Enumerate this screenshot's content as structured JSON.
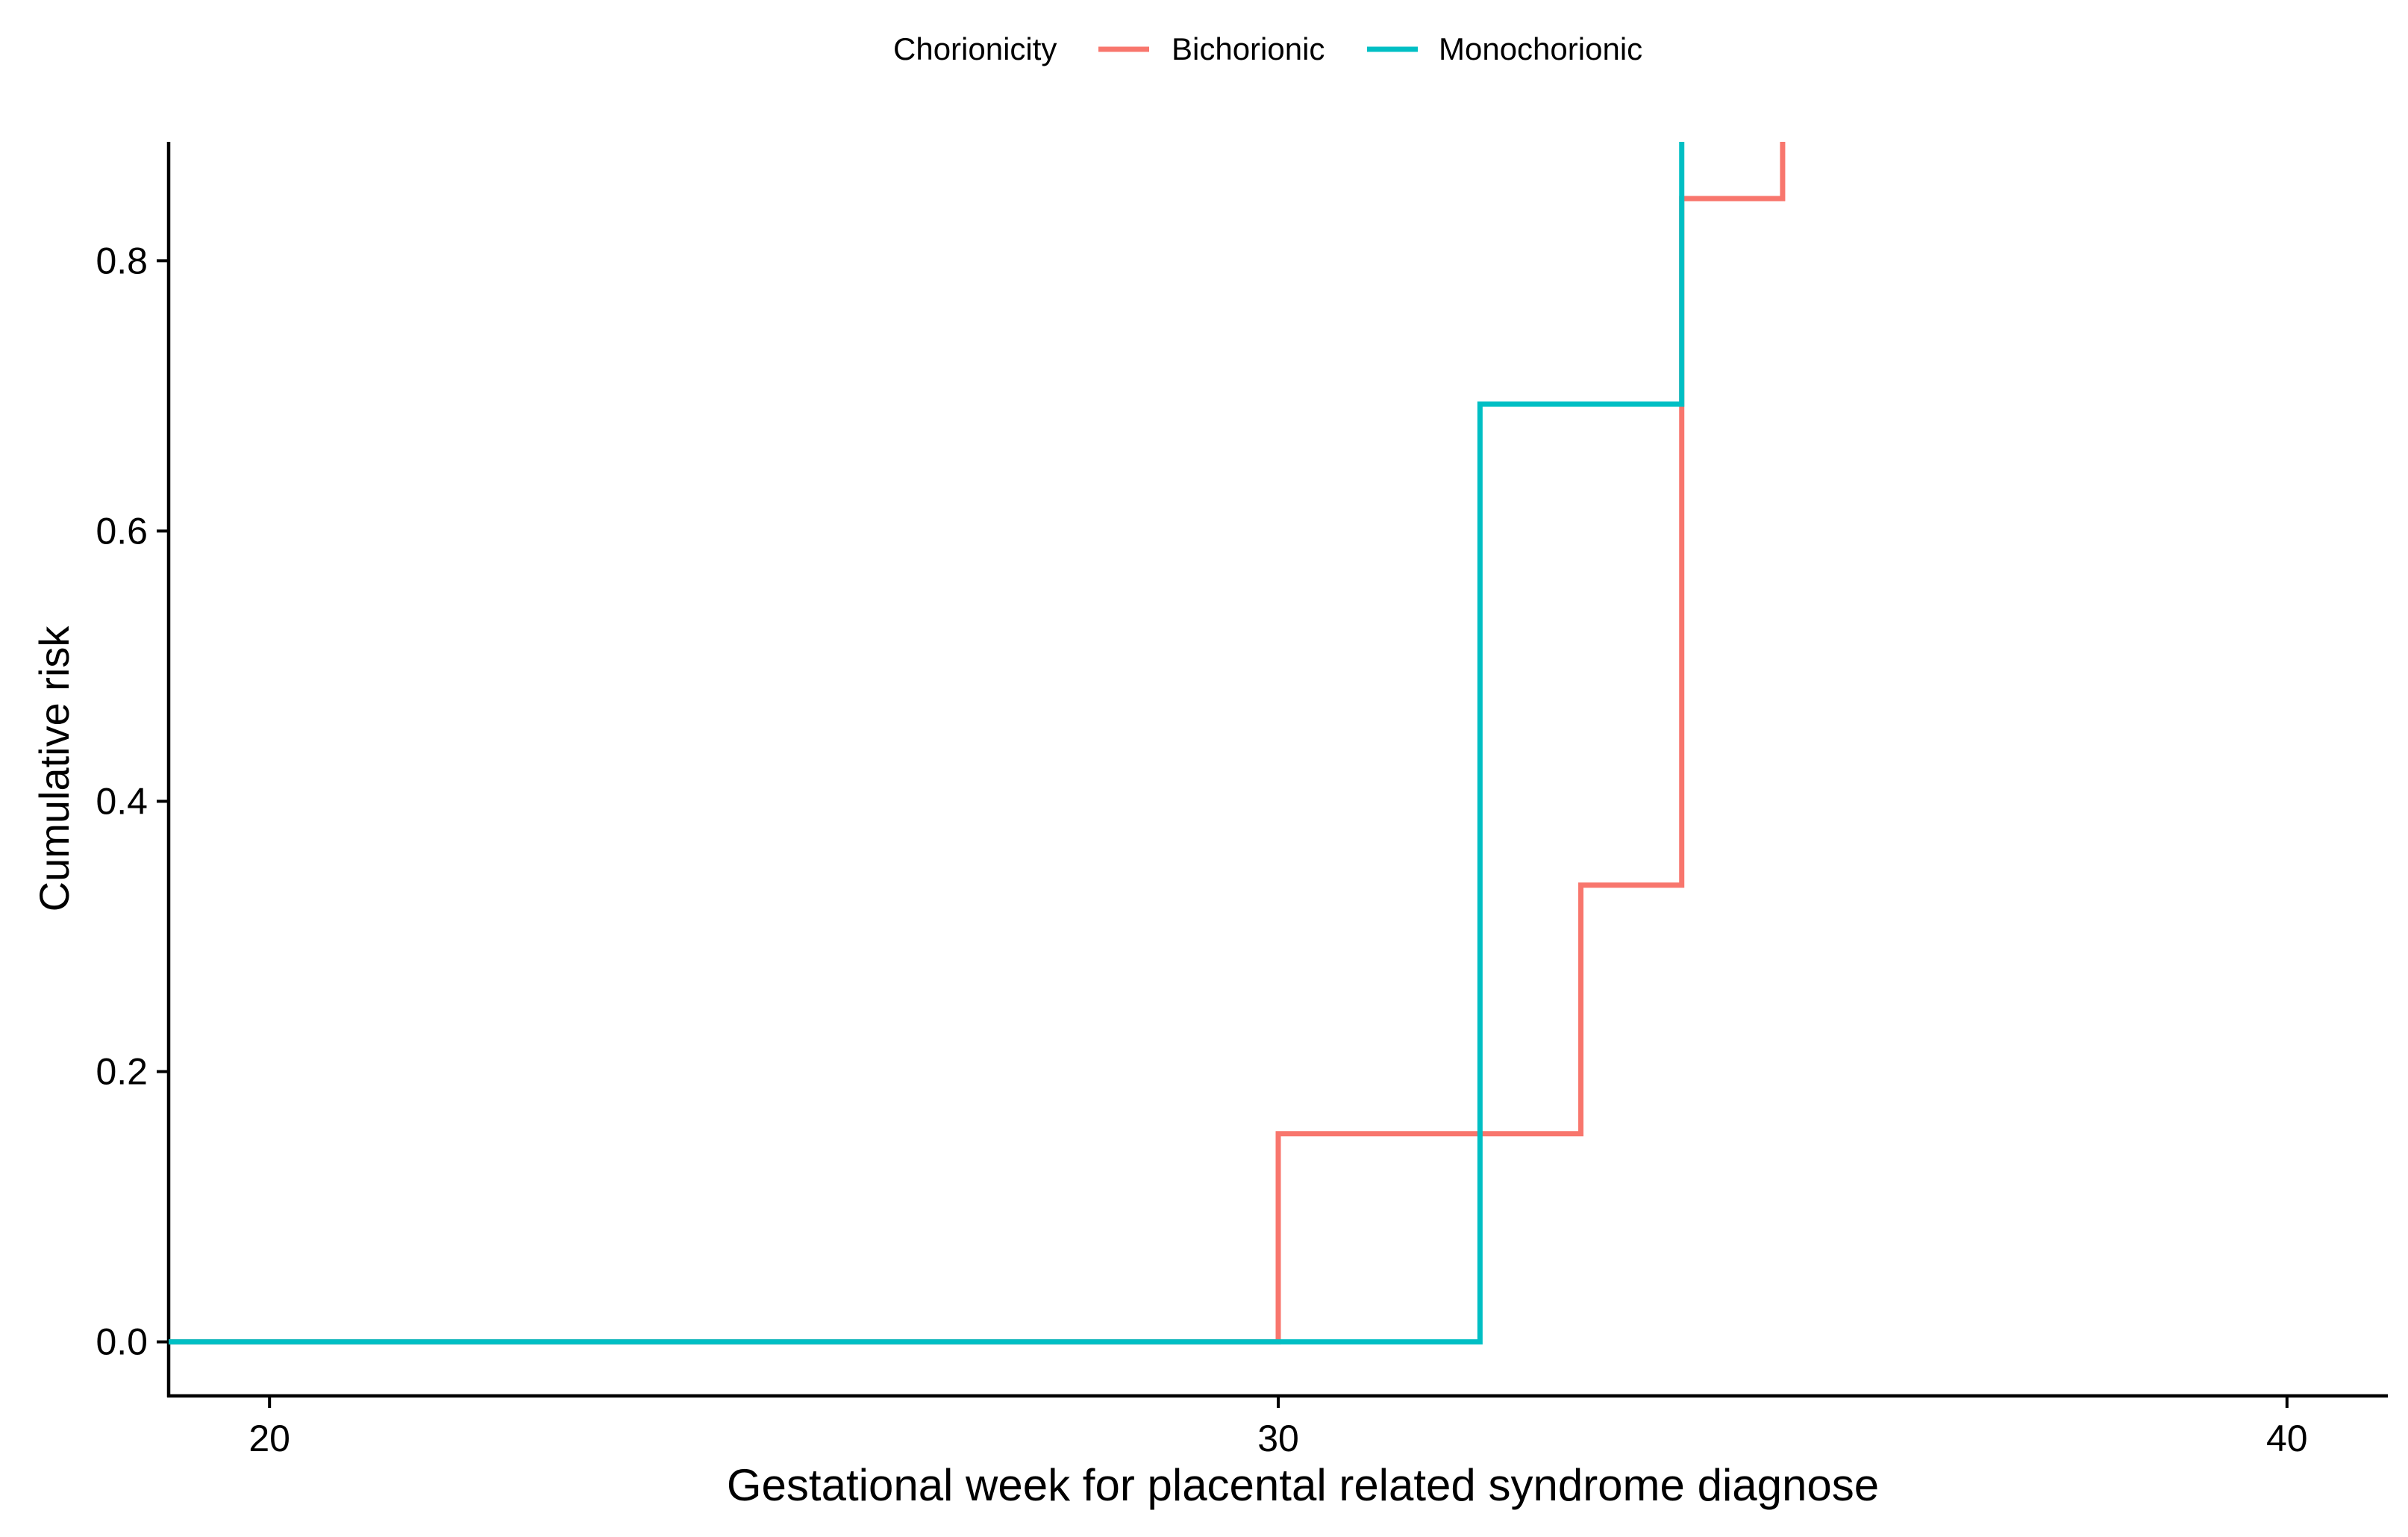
{
  "chart_data": {
    "type": "line",
    "title": "",
    "xlabel": "Gestational week for placental related syndrome diagnose",
    "ylabel": "Cumulative risk",
    "xlim": [
      19,
      41
    ],
    "ylim": [
      -0.04,
      0.888
    ],
    "x_ticks": [
      20,
      30,
      40
    ],
    "x_tick_labels": [
      "20",
      "30",
      "40"
    ],
    "y_ticks": [
      0.0,
      0.2,
      0.4,
      0.6,
      0.8
    ],
    "y_tick_labels": [
      "0.0",
      "0.2",
      "0.4",
      "0.6",
      "0.8"
    ],
    "grid": false,
    "step": true,
    "legend": {
      "title": "Chorionicity",
      "position": "top"
    },
    "series": [
      {
        "name": "Bichorionic",
        "color": "#F8766D",
        "x": [
          19,
          30,
          33,
          34,
          35
        ],
        "values": [
          0.0,
          0.154,
          0.338,
          0.846,
          1.0
        ]
      },
      {
        "name": "Monochorionic",
        "color": "#00BFC4",
        "x": [
          19,
          32,
          34
        ],
        "values": [
          0.0,
          0.694,
          1.0
        ]
      }
    ]
  }
}
